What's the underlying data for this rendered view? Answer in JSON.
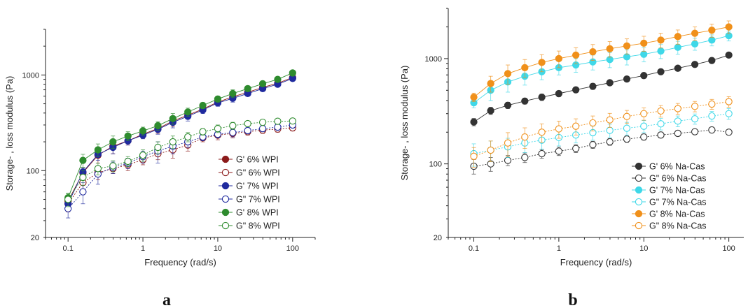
{
  "colors": {
    "axis": "#222222",
    "G6_WPI": "#8b1a1a",
    "G7_WPI": "#1f2a9e",
    "G8_WPI": "#2e8b2e",
    "G6_NaCas": "#333333",
    "G7_NaCas": "#3fd8e8",
    "G8_NaCas": "#f0901a"
  },
  "chart_data": [
    {
      "panel": "a",
      "type": "scatter",
      "xscale": "log",
      "yscale": "log",
      "xlim": [
        0.05,
        200
      ],
      "ylim": [
        20,
        3000
      ],
      "xticks": [
        0.1,
        1,
        10,
        100
      ],
      "xticklabels": [
        "0.1",
        "1",
        "10",
        "100"
      ],
      "yticks": [
        20,
        100,
        1000
      ],
      "yticklabels": [
        "20",
        "100",
        "1000"
      ],
      "xlabel": "Frequency (rad/s)",
      "ylabel": "Storage- , loss modulus (Pa)",
      "legend_position": "lower-right",
      "x": [
        0.1,
        0.158,
        0.251,
        0.398,
        0.631,
        1,
        1.585,
        2.512,
        3.981,
        6.31,
        10,
        15.85,
        25.12,
        39.81,
        63.1,
        100
      ],
      "series": [
        {
          "name": "G' 6% WPI",
          "filled": true,
          "color_key": "G6_WPI",
          "values": [
            48,
            95,
            145,
            180,
            205,
            240,
            275,
            330,
            380,
            440,
            520,
            590,
            660,
            740,
            820,
            940
          ],
          "err": [
            5,
            12,
            25,
            30,
            20,
            22,
            30,
            40,
            35,
            30,
            40,
            50,
            45,
            50,
            45,
            50
          ]
        },
        {
          "name": "G\" 6% WPI",
          "filled": false,
          "color_key": "G6_WPI",
          "values": [
            45,
            75,
            95,
            105,
            115,
            130,
            150,
            165,
            185,
            220,
            235,
            245,
            255,
            265,
            272,
            280
          ],
          "err": [
            8,
            15,
            15,
            12,
            15,
            15,
            20,
            30,
            25,
            20,
            25,
            25,
            20,
            20,
            20,
            20
          ]
        },
        {
          "name": "G' 7% WPI",
          "filled": true,
          "color_key": "G7_WPI",
          "values": [
            45,
            97,
            148,
            175,
            205,
            235,
            270,
            320,
            370,
            430,
            510,
            570,
            640,
            720,
            800,
            920
          ],
          "err": [
            5,
            10,
            20,
            25,
            20,
            20,
            30,
            40,
            40,
            35,
            40,
            50,
            40,
            45,
            45,
            50
          ]
        },
        {
          "name": "G\" 7% WPI",
          "filled": false,
          "color_key": "G7_WPI",
          "values": [
            40,
            60,
            92,
            108,
            120,
            140,
            160,
            180,
            200,
            225,
            240,
            250,
            262,
            275,
            285,
            300
          ],
          "err": [
            8,
            15,
            20,
            15,
            15,
            20,
            40,
            30,
            25,
            20,
            20,
            25,
            20,
            20,
            20,
            20
          ]
        },
        {
          "name": "G' 8% WPI",
          "filled": true,
          "color_key": "G8_WPI",
          "values": [
            52,
            128,
            165,
            200,
            230,
            260,
            295,
            350,
            410,
            480,
            560,
            640,
            720,
            810,
            900,
            1050
          ],
          "err": [
            5,
            20,
            25,
            30,
            25,
            25,
            30,
            45,
            40,
            35,
            40,
            60,
            50,
            50,
            50,
            55
          ]
        },
        {
          "name": "G\" 8% WPI",
          "filled": false,
          "color_key": "G8_WPI",
          "values": [
            50,
            85,
            105,
            112,
            125,
            145,
            175,
            200,
            225,
            255,
            275,
            295,
            310,
            320,
            328,
            330
          ],
          "err": [
            8,
            15,
            15,
            15,
            15,
            20,
            25,
            30,
            25,
            20,
            25,
            25,
            20,
            20,
            20,
            20
          ]
        }
      ]
    },
    {
      "panel": "b",
      "type": "scatter",
      "xscale": "log",
      "yscale": "log",
      "xlim": [
        0.05,
        150
      ],
      "ylim": [
        20,
        3000
      ],
      "xticks": [
        0.1,
        1,
        10,
        100
      ],
      "xticklabels": [
        "0.1",
        "1",
        "10",
        "100"
      ],
      "yticks": [
        20,
        100,
        1000
      ],
      "yticklabels": [
        "20",
        "100",
        "1000"
      ],
      "xlabel": "Frequency (rad/s)",
      "ylabel": "Storage- , loss modulus (Pa)",
      "legend_position": "lower-right",
      "x": [
        0.1,
        0.158,
        0.251,
        0.398,
        0.631,
        1,
        1.585,
        2.512,
        3.981,
        6.31,
        10,
        15.85,
        25.12,
        39.81,
        63.1,
        100
      ],
      "series": [
        {
          "name": "G' 6% Na-Cas",
          "filled": true,
          "color_key": "G6_NaCas",
          "values": [
            250,
            320,
            360,
            395,
            430,
            465,
            505,
            545,
            590,
            640,
            690,
            750,
            810,
            880,
            960,
            1080
          ],
          "err": [
            20,
            25,
            25,
            25,
            30,
            30,
            30,
            35,
            35,
            35,
            40,
            40,
            40,
            45,
            45,
            50
          ]
        },
        {
          "name": "G\" 6% Na-Cas",
          "filled": false,
          "color_key": "G6_NaCas",
          "values": [
            95,
            100,
            108,
            115,
            125,
            132,
            140,
            152,
            162,
            172,
            180,
            188,
            195,
            202,
            210,
            200
          ],
          "err": [
            15,
            15,
            12,
            12,
            12,
            12,
            12,
            12,
            12,
            12,
            12,
            12,
            12,
            12,
            12,
            12
          ]
        },
        {
          "name": "G' 7% Na-Cas",
          "filled": true,
          "color_key": "G7_NaCas",
          "values": [
            380,
            500,
            600,
            680,
            750,
            820,
            870,
            930,
            980,
            1040,
            1100,
            1180,
            1280,
            1380,
            1500,
            1650
          ],
          "err": [
            40,
            100,
            120,
            120,
            120,
            120,
            130,
            150,
            160,
            170,
            170,
            180,
            180,
            180,
            180,
            180
          ]
        },
        {
          "name": "G\" 7% Na-Cas",
          "filled": false,
          "color_key": "G7_NaCas",
          "values": [
            125,
            135,
            145,
            158,
            168,
            178,
            188,
            198,
            208,
            218,
            228,
            240,
            255,
            268,
            285,
            300
          ],
          "err": [
            30,
            30,
            30,
            30,
            30,
            30,
            30,
            30,
            30,
            30,
            30,
            30,
            30,
            30,
            30,
            35
          ]
        },
        {
          "name": "G' 8% Na-Cas",
          "filled": true,
          "color_key": "G8_NaCas",
          "values": [
            430,
            580,
            720,
            820,
            920,
            1000,
            1080,
            1160,
            1240,
            1320,
            1400,
            1500,
            1620,
            1740,
            1860,
            2000
          ],
          "err": [
            40,
            100,
            150,
            160,
            170,
            180,
            190,
            200,
            210,
            220,
            230,
            240,
            250,
            260,
            270,
            280
          ]
        },
        {
          "name": "G\" 8% Na-Cas",
          "filled": false,
          "color_key": "G8_NaCas",
          "values": [
            118,
            135,
            158,
            180,
            200,
            215,
            228,
            245,
            262,
            282,
            300,
            318,
            335,
            352,
            370,
            390
          ],
          "err": [
            25,
            30,
            40,
            40,
            40,
            40,
            40,
            40,
            40,
            40,
            40,
            40,
            40,
            40,
            40,
            45
          ]
        }
      ]
    }
  ],
  "labels": {
    "panel_a": "a",
    "panel_b": "b"
  }
}
